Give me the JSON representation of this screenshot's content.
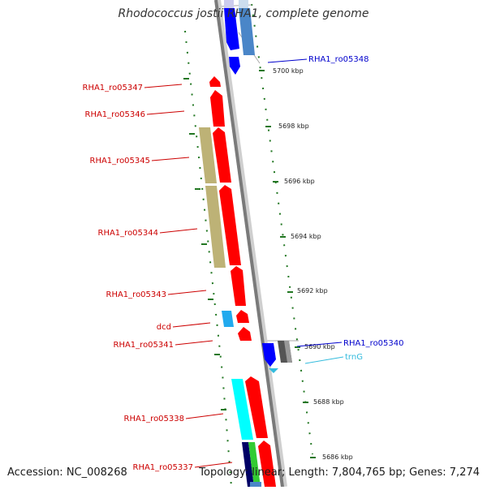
{
  "header": {
    "title": "Rhodococcus jostii RHA1, complete genome"
  },
  "footer": {
    "accession": "Accession: NC_008268",
    "summary": "Topology: linear; Length: 7,804,765 bp; Genes: 7,274"
  },
  "colors": {
    "gene_red": "#ff0000",
    "gene_blue": "#0000ff",
    "steel_blue": "#4a86c8",
    "trna_cyan": "#33bbdd",
    "khaki": "#bdb276",
    "label_red": "#cc0000",
    "label_blue": "#0000cc",
    "tick_green": "#227722",
    "backbone_gray": "#888888"
  },
  "scale": {
    "unit": "kbp",
    "ticks": [
      "5700 kbp",
      "5698 kbp",
      "5696 kbp",
      "5694 kbp",
      "5692 kbp",
      "5690 kbp",
      "5688 kbp",
      "5686 kbp"
    ]
  },
  "gene_labels": [
    {
      "name": "RHA1_ro05348",
      "color": "blue"
    },
    {
      "name": "RHA1_ro05347",
      "color": "red"
    },
    {
      "name": "RHA1_ro05346",
      "color": "red"
    },
    {
      "name": "RHA1_ro05345",
      "color": "red"
    },
    {
      "name": "RHA1_ro05344",
      "color": "red"
    },
    {
      "name": "RHA1_ro05343",
      "color": "red"
    },
    {
      "name": "dcd",
      "color": "red"
    },
    {
      "name": "RHA1_ro05341",
      "color": "red"
    },
    {
      "name": "RHA1_ro05340",
      "color": "blue"
    },
    {
      "name": "trnG",
      "color": "cyan"
    },
    {
      "name": "RHA1_ro05338",
      "color": "red"
    },
    {
      "name": "RHA1_ro05337",
      "color": "red"
    }
  ]
}
